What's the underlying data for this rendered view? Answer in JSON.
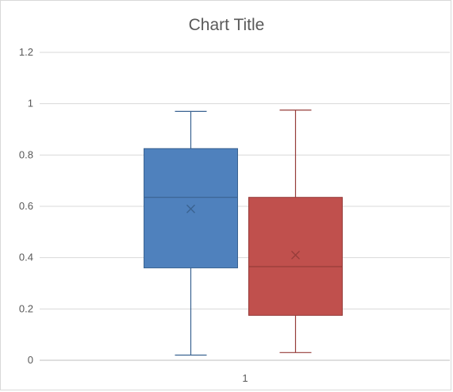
{
  "chart_data": {
    "type": "box",
    "title": "Chart Title",
    "categories": [
      "1"
    ],
    "ylim": [
      0,
      1.2
    ],
    "yticks": [
      0,
      0.2,
      0.4,
      0.6,
      0.8,
      1,
      1.2
    ],
    "ytick_labels": [
      "0",
      "0.2",
      "0.4",
      "0.6",
      "0.8",
      "1",
      "1.2"
    ],
    "grid": true,
    "legend": "none",
    "series": [
      {
        "color": "#4f81bd",
        "edge": "#3a6391",
        "min": 0.02,
        "q1": 0.36,
        "median": 0.635,
        "q3": 0.825,
        "max": 0.97,
        "mean": 0.59
      },
      {
        "color": "#c0504d",
        "edge": "#963c3a",
        "min": 0.03,
        "q1": 0.175,
        "median": 0.365,
        "q3": 0.635,
        "max": 0.975,
        "mean": 0.41
      }
    ]
  }
}
